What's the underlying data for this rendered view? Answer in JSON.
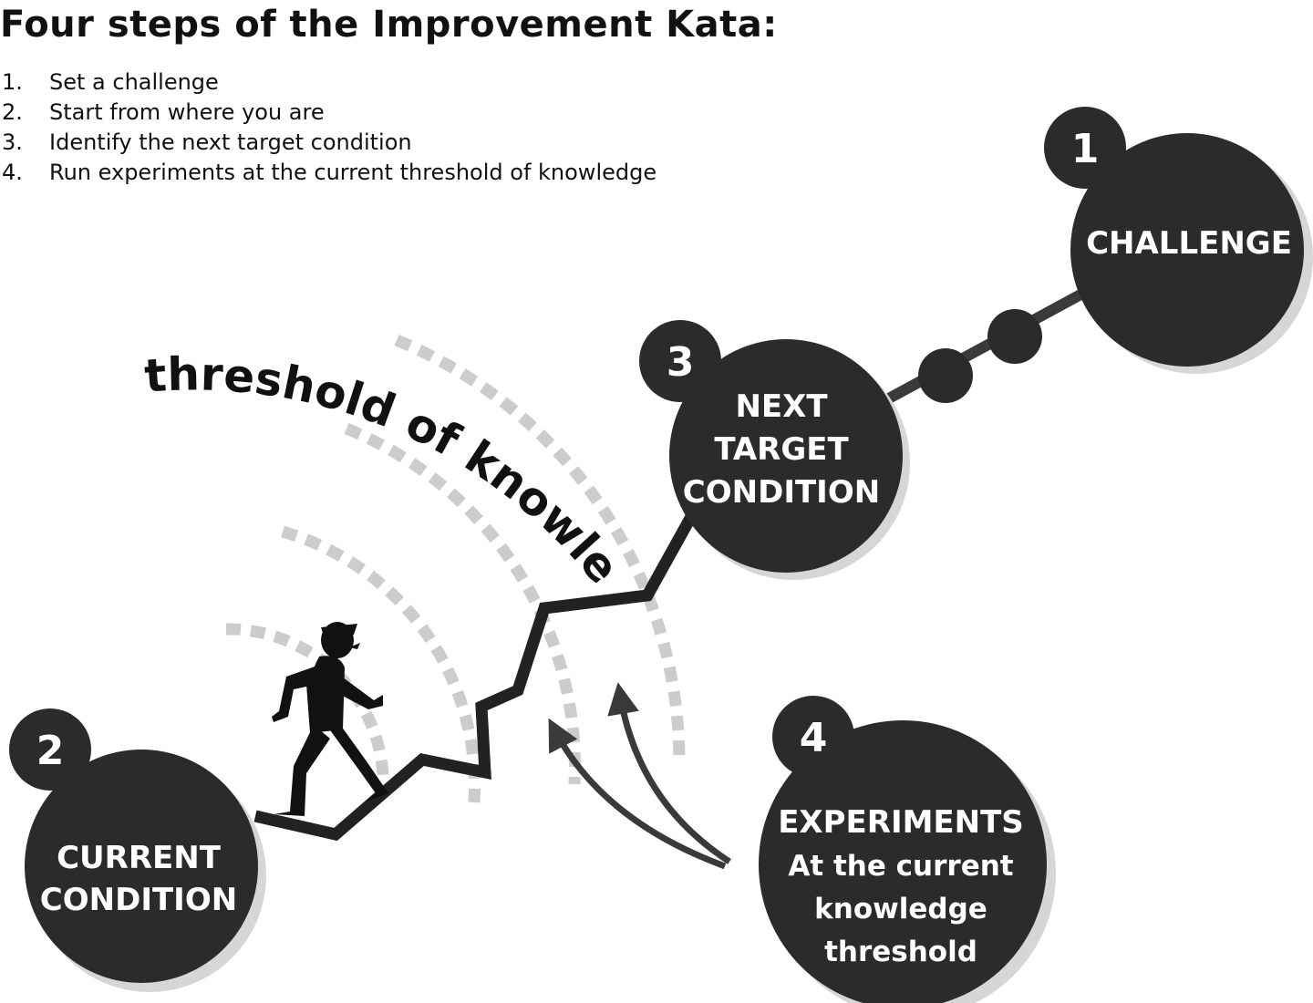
{
  "title": "Four steps of the Improvement Kata:",
  "steps": [
    {
      "number": "1.",
      "text": "Set a challenge"
    },
    {
      "number": "2.",
      "text": "Start from where you are"
    },
    {
      "number": "3.",
      "text": "Identify the next target condition"
    },
    {
      "number": "4.",
      "text": "Run experiments at the current threshold of knowledge"
    }
  ],
  "threshold_label": "threshold of knowledge",
  "nodes": {
    "challenge": {
      "badge": "1",
      "lines": [
        "CHALLENGE"
      ]
    },
    "current": {
      "badge": "2",
      "lines": [
        "CURRENT",
        "CONDITION"
      ]
    },
    "target": {
      "badge": "3",
      "lines": [
        "NEXT",
        "TARGET",
        "CONDITION"
      ]
    },
    "experiments": {
      "badge": "4",
      "lines": [
        "EXPERIMENTS",
        "At the current",
        "knowledge",
        "threshold"
      ]
    }
  },
  "colors": {
    "node_fill": "#2b2b2b",
    "node_shadow": "#d6d6d6",
    "dashed_arc": "#cccccc",
    "arrow": "#3a3a3a",
    "text_light": "#ffffff",
    "text_dark": "#111111"
  },
  "icons": {
    "walker": "walking-person-icon"
  }
}
